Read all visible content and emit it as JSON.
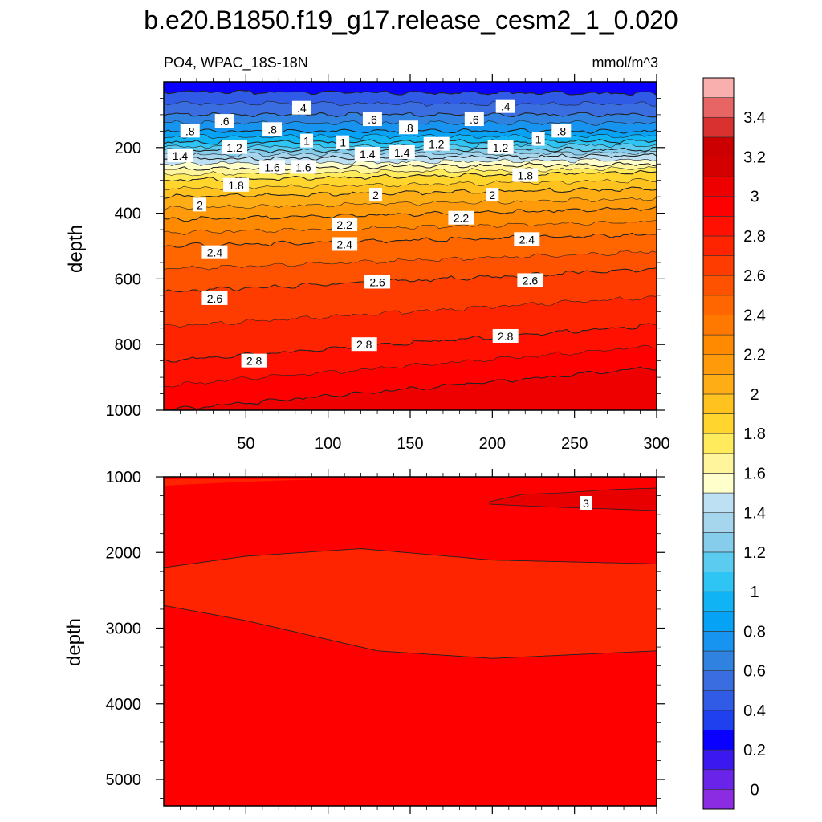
{
  "title": "b.e20.B1850.f19_g17.release_cesm2_1_0.020",
  "subtitle_left": "PO4, WPAC_18S-18N",
  "subtitle_right": "mmol/m^3",
  "colors": {
    "levels": [
      "#8B2BE2",
      "#6A23E8",
      "#3B17F0",
      "#0A00FF",
      "#1E40EE",
      "#2F5BE6",
      "#3A6DE0",
      "#2F82DF",
      "#1794F0",
      "#05A2F5",
      "#10B4F5",
      "#2EC4F4",
      "#5BCBF0",
      "#86CCEB",
      "#A6D6EE",
      "#BEE0F3",
      "#FFFFCC",
      "#FFF59D",
      "#FFEB5C",
      "#FFD52E",
      "#FFC21F",
      "#FFAD15",
      "#FF9A0A",
      "#FF8A00",
      "#FF7800",
      "#FF6600",
      "#FF5200",
      "#FF3C00",
      "#FF2400",
      "#FF1000",
      "#FF0000",
      "#EE0000",
      "#D40000",
      "#CC0000",
      "#D93030",
      "#E86565",
      "#FAAFAF"
    ],
    "contour_line": "#222222",
    "label_box": "#ffffff"
  },
  "chart_data": [
    {
      "type": "contour",
      "panel": "upper",
      "variable": "PO4",
      "region": "WPAC_18S-18N",
      "units": "mmol/m^3",
      "xlabel": "",
      "ylabel": "depth",
      "xlim": [
        0,
        300
      ],
      "ylim": [
        1000,
        0
      ],
      "xticks": [
        50,
        100,
        150,
        200,
        250,
        300
      ],
      "yticks": [
        200,
        400,
        600,
        800,
        1000
      ],
      "contours": [
        {
          "level": 0.4,
          "depth_at_x": [
            [
              0,
              30
            ],
            [
              300,
              35
            ]
          ]
        },
        {
          "level": 0.6,
          "depth_at_x": [
            [
              0,
              100
            ],
            [
              300,
              100
            ]
          ]
        },
        {
          "level": 0.8,
          "depth_at_x": [
            [
              0,
              150
            ],
            [
              300,
              150
            ]
          ]
        },
        {
          "level": 1.0,
          "depth_at_x": [
            [
              0,
              185
            ],
            [
              300,
              180
            ]
          ]
        },
        {
          "level": 1.2,
          "depth_at_x": [
            [
              0,
              210
            ],
            [
              300,
              205
            ]
          ]
        },
        {
          "level": 1.4,
          "depth_at_x": [
            [
              0,
              235
            ],
            [
              300,
              225
            ]
          ]
        },
        {
          "level": 1.6,
          "depth_at_x": [
            [
              0,
              265
            ],
            [
              300,
              250
            ]
          ]
        },
        {
          "level": 1.8,
          "depth_at_x": [
            [
              0,
              300
            ],
            [
              300,
              275
            ]
          ]
        },
        {
          "level": 2.0,
          "depth_at_x": [
            [
              0,
              350
            ],
            [
              300,
              325
            ]
          ]
        },
        {
          "level": 2.2,
          "depth_at_x": [
            [
              0,
              420
            ],
            [
              300,
              385
            ]
          ]
        },
        {
          "level": 2.4,
          "depth_at_x": [
            [
              0,
              500
            ],
            [
              300,
              465
            ]
          ]
        },
        {
          "level": 2.6,
          "depth_at_x": [
            [
              0,
              640
            ],
            [
              300,
              570
            ]
          ]
        },
        {
          "level": 2.8,
          "depth_at_x": [
            [
              0,
              850
            ],
            [
              300,
              740
            ]
          ]
        },
        {
          "level": 3.0,
          "depth_at_x": [
            [
              0,
              1000
            ],
            [
              300,
              870
            ]
          ]
        }
      ],
      "labels": [
        {
          "text": ".4",
          "x": 84,
          "depth": 80
        },
        {
          "text": ".4",
          "x": 208,
          "depth": 75
        },
        {
          "text": ".6",
          "x": 37,
          "depth": 120
        },
        {
          "text": ".6",
          "x": 127,
          "depth": 115
        },
        {
          "text": ".6",
          "x": 189,
          "depth": 115
        },
        {
          "text": ".8",
          "x": 16,
          "depth": 150
        },
        {
          "text": ".8",
          "x": 66,
          "depth": 145
        },
        {
          "text": ".8",
          "x": 149,
          "depth": 140
        },
        {
          "text": ".8",
          "x": 242,
          "depth": 150
        },
        {
          "text": "1",
          "x": 87,
          "depth": 180
        },
        {
          "text": "1",
          "x": 109,
          "depth": 185
        },
        {
          "text": "1",
          "x": 228,
          "depth": 175
        },
        {
          "text": "1.2",
          "x": 43,
          "depth": 200
        },
        {
          "text": "1.2",
          "x": 166,
          "depth": 190
        },
        {
          "text": "1.2",
          "x": 205,
          "depth": 200
        },
        {
          "text": "1.4",
          "x": 10,
          "depth": 225
        },
        {
          "text": "1.4",
          "x": 124,
          "depth": 220
        },
        {
          "text": "1.4",
          "x": 145,
          "depth": 215
        },
        {
          "text": "1.6",
          "x": 66,
          "depth": 260
        },
        {
          "text": "1.6",
          "x": 85,
          "depth": 260
        },
        {
          "text": "1.8",
          "x": 44,
          "depth": 315
        },
        {
          "text": "1.8",
          "x": 220,
          "depth": 285
        },
        {
          "text": "2",
          "x": 22,
          "depth": 375
        },
        {
          "text": "2",
          "x": 129,
          "depth": 345
        },
        {
          "text": "2",
          "x": 200,
          "depth": 345
        },
        {
          "text": "2.2",
          "x": 110,
          "depth": 435
        },
        {
          "text": "2.2",
          "x": 181,
          "depth": 415
        },
        {
          "text": "2.4",
          "x": 31,
          "depth": 520
        },
        {
          "text": "2.4",
          "x": 110,
          "depth": 495
        },
        {
          "text": "2.4",
          "x": 221,
          "depth": 480
        },
        {
          "text": "2.6",
          "x": 31,
          "depth": 660
        },
        {
          "text": "2.6",
          "x": 130,
          "depth": 610
        },
        {
          "text": "2.6",
          "x": 223,
          "depth": 605
        },
        {
          "text": "2.8",
          "x": 55,
          "depth": 850
        },
        {
          "text": "2.8",
          "x": 122,
          "depth": 800
        },
        {
          "text": "2.8",
          "x": 208,
          "depth": 775
        }
      ]
    },
    {
      "type": "contour",
      "panel": "lower",
      "xlabel": "",
      "ylabel": "depth",
      "xlim": [
        0,
        300
      ],
      "ylim": [
        5350,
        1000
      ],
      "yticks": [
        1000,
        2000,
        3000,
        4000,
        5000
      ],
      "contours": [
        {
          "level": 3.0,
          "depth_at_x": [
            [
              0,
              2200
            ],
            [
              50,
              2050
            ],
            [
              120,
              1950
            ],
            [
              200,
              2100
            ],
            [
              300,
              2150
            ]
          ]
        },
        {
          "level": 3.0,
          "depth_at_x": [
            [
              0,
              2700
            ],
            [
              50,
              2900
            ],
            [
              130,
              3300
            ],
            [
              200,
              3400
            ],
            [
              300,
              3300
            ]
          ]
        }
      ],
      "labels": [
        {
          "text": "3",
          "x": 257,
          "depth": 1350
        }
      ]
    }
  ],
  "colorbar": {
    "labels": [
      "0",
      "0.2",
      "0.4",
      "0.6",
      "0.8",
      "1",
      "1.2",
      "1.4",
      "1.6",
      "1.8",
      "2",
      "2.2",
      "2.4",
      "2.6",
      "2.8",
      "3",
      "3.2",
      "3.4"
    ]
  }
}
